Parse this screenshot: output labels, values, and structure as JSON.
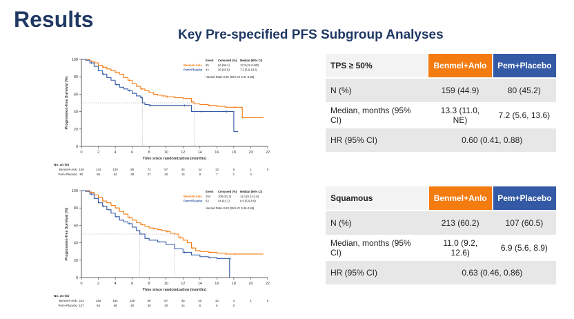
{
  "title": "Results",
  "subtitle": "Key Pre-specified PFS Subgroup Analyses",
  "colors": {
    "benmel": "#f47b10",
    "pem": "#345aa5",
    "title": "#1f3864"
  },
  "chart_data": [
    {
      "type": "line",
      "subtype": "kaplan-meier",
      "ylabel": "Progression-free Survival (%)",
      "xlabel": "Time since randomization (months)",
      "x_ticks": [
        0,
        2,
        4,
        6,
        8,
        10,
        12,
        14,
        16,
        18,
        20,
        22
      ],
      "y_ticks": [
        0,
        20,
        40,
        60,
        80,
        100
      ],
      "xlim": [
        0,
        22
      ],
      "ylim": [
        0,
        100
      ],
      "legend": {
        "headers": [
          "Event",
          "Censored (%)",
          "Median (95% CI)"
        ],
        "rows": [
          {
            "name": "Benmel+Anlo",
            "event": "65",
            "censored": "94 (59.1)",
            "median": "13.3 (11.0-NR)"
          },
          {
            "name": "Pem+Placebo",
            "event": "44",
            "censored": "36 (45.0)",
            "median": "7.2 (5.6-13.6)"
          }
        ],
        "hr_text": "Hazard Ratio 0.60 (95% CI 0.41-0.88)"
      },
      "medians": [
        13.3,
        7.2
      ],
      "series": [
        {
          "name": "Benmel+Anlo",
          "x": [
            0,
            0.5,
            1,
            1.5,
            2,
            2.5,
            3,
            3.5,
            4,
            4.5,
            5,
            5.5,
            6,
            6.5,
            7,
            7.5,
            8,
            8.5,
            9,
            9.5,
            10,
            11,
            12,
            13,
            13.3,
            14,
            15,
            16,
            17,
            18,
            19,
            20,
            21.5
          ],
          "y": [
            100,
            100,
            98,
            96,
            93,
            91,
            89,
            87,
            85,
            83,
            79,
            76,
            72,
            69,
            66,
            64,
            62,
            60,
            59,
            58,
            57,
            56,
            55,
            51,
            49,
            48,
            47,
            46,
            45,
            45,
            33,
            33,
            33
          ]
        },
        {
          "name": "Pem+Placebo",
          "x": [
            0,
            0.5,
            1,
            1.5,
            2,
            2.5,
            3,
            3.5,
            4,
            4.5,
            5,
            5.5,
            6,
            6.5,
            7,
            7.2,
            7.5,
            8,
            10,
            11,
            12,
            12.5,
            13,
            14,
            15,
            16,
            17,
            18,
            18.5
          ],
          "y": [
            100,
            99,
            96,
            92,
            87,
            83,
            79,
            76,
            71,
            68,
            66,
            64,
            61,
            58,
            56,
            50,
            48,
            47,
            47,
            47,
            47,
            47,
            40,
            40,
            40,
            40,
            40,
            17,
            17
          ]
        }
      ],
      "risk_table": {
        "title": "No. at risk",
        "rows": [
          {
            "label": "Benmel+Anlo",
            "values": [
              "159",
              "144",
              "130",
              "89",
              "74",
              "57",
              "44",
              "24",
              "13",
              "6",
              "1",
              "0"
            ]
          },
          {
            "label": "Pem+Placebo",
            "values": [
              "80",
              "66",
              "54",
              "38",
              "27",
              "20",
              "15",
              "9",
              "7",
              "1",
              "0"
            ]
          }
        ]
      }
    },
    {
      "type": "line",
      "subtype": "kaplan-meier",
      "ylabel": "Progression-free Survival (%)",
      "xlabel": "Time since randomization (months)",
      "x_ticks": [
        0,
        2,
        4,
        6,
        8,
        10,
        12,
        14,
        16,
        18,
        20,
        22
      ],
      "y_ticks": [
        0,
        20,
        40,
        60,
        80,
        100
      ],
      "xlim": [
        0,
        22
      ],
      "ylim": [
        0,
        100
      ],
      "legend": {
        "headers": [
          "Event",
          "Censored (%)",
          "Median (95% CI)"
        ],
        "rows": [
          {
            "name": "Benmel+Anlo",
            "event": "104",
            "censored": "109 (51.2)",
            "median": "11.0 (9.2-12.6)"
          },
          {
            "name": "Pem+Placebo",
            "event": "63",
            "censored": "44 (41.1)",
            "median": "6.9 (5.6-8.9)"
          }
        ],
        "hr_text": "Hazard Ratio 0.63 (95% CI 0.46-0.86)"
      },
      "medians": [
        11.0,
        6.9
      ],
      "series": [
        {
          "name": "Benmel+Anlo",
          "x": [
            0,
            0.5,
            1,
            1.5,
            2,
            2.5,
            3,
            3.5,
            4,
            4.5,
            5,
            5.5,
            6,
            6.5,
            7,
            7.5,
            8,
            8.5,
            9,
            9.5,
            10,
            10.5,
            11,
            11.5,
            12,
            12.5,
            13,
            13.5,
            14,
            15,
            16,
            17,
            18,
            19,
            20,
            21.5
          ],
          "y": [
            100,
            100,
            98,
            95,
            92,
            88,
            86,
            83,
            80,
            76,
            73,
            69,
            66,
            63,
            61,
            59,
            57,
            56,
            55,
            54,
            53,
            51,
            50,
            46,
            43,
            40,
            34,
            31,
            30,
            29,
            28,
            27,
            27,
            27,
            27,
            27
          ]
        },
        {
          "name": "Pem+Placebo",
          "x": [
            0,
            0.5,
            1,
            1.5,
            2,
            2.5,
            3,
            3.5,
            4,
            4.5,
            5,
            5.5,
            6,
            6.5,
            6.9,
            7.5,
            8,
            9,
            10,
            11,
            12,
            13,
            14,
            15,
            16,
            17,
            17.5,
            17.5
          ],
          "y": [
            100,
            99,
            96,
            91,
            86,
            82,
            78,
            74,
            70,
            66,
            64,
            62,
            58,
            54,
            50,
            45,
            43,
            41,
            38,
            33,
            29,
            26,
            24,
            23,
            22,
            22,
            22,
            0
          ]
        }
      ],
      "risk_table": {
        "title": "No. at risk",
        "rows": [
          {
            "label": "Benmel+Anlo",
            "values": [
              "213",
              "183",
              "164",
              "128",
              "90",
              "67",
              "45",
              "20",
              "10",
              "4",
              "1",
              "0"
            ]
          },
          {
            "label": "Pem+Placebo",
            "values": [
              "107",
              "84",
              "68",
              "40",
              "30",
              "20",
              "14",
              "8",
              "5",
              "0"
            ]
          }
        ]
      }
    }
  ],
  "tables": [
    {
      "header": "TPS ≥ 50%",
      "col1": "Benmel+Anlo",
      "col2": "Pem+Placebo",
      "rows": [
        {
          "label": "N (%)",
          "v1": "159 (44.9)",
          "v2": "80 (45.2)"
        },
        {
          "label": "Median, months (95% CI)",
          "v1": "13.3 (11.0, NE)",
          "v2": "7.2 (5.6, 13.6)"
        }
      ],
      "hr_label": "HR (95% CI)",
      "hr_value": "0.60 (0.41, 0.88)"
    },
    {
      "header": "Squamous",
      "col1": "Benmel+Anlo",
      "col2": "Pem+Placebo",
      "rows": [
        {
          "label": "N (%)",
          "v1": "213 (60.2)",
          "v2": "107 (60.5)"
        },
        {
          "label": "Median, months (95% CI)",
          "v1": "11.0 (9.2, 12.6)",
          "v2": "6.9 (5.6, 8.9)"
        }
      ],
      "hr_label": "HR (95% CI)",
      "hr_value": "0.63 (0.46, 0.86)"
    }
  ]
}
